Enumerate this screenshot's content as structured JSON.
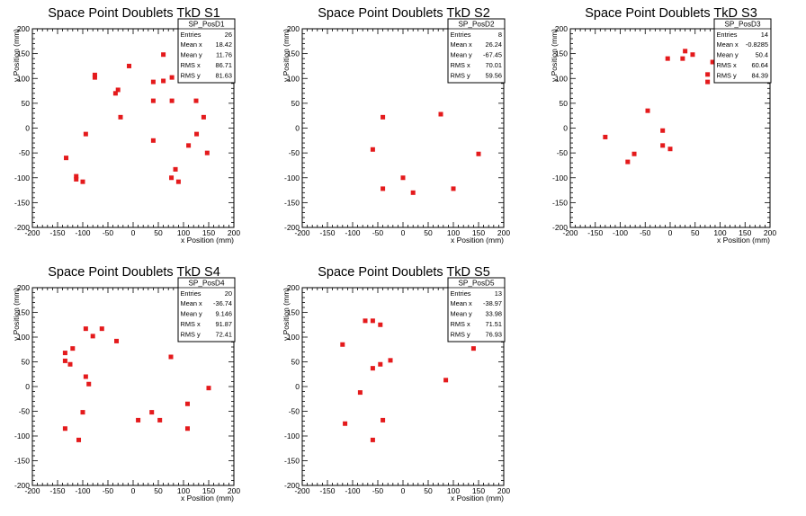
{
  "page": {
    "background": "#ffffff"
  },
  "chart_data": [
    {
      "type": "scatter",
      "title": "Space Point Doublets TkD S1",
      "xlabel": "x Position (mm)",
      "ylabel": "y Position (mm)",
      "xlim": [
        -200,
        200
      ],
      "ylim": [
        -200,
        200
      ],
      "xticks": [
        "-200",
        "-150",
        "-100",
        "-50",
        "0",
        "50",
        "100",
        "150",
        "200"
      ],
      "yticks": [
        "-200",
        "-150",
        "-100",
        "-50",
        "0",
        "50",
        "100",
        "150",
        "200"
      ],
      "grid": false,
      "marker_color": "#e41a1c",
      "stats": {
        "name": "SP_PosD1",
        "rows": [
          [
            "Entries",
            "26"
          ],
          [
            "Mean x",
            "18.42"
          ],
          [
            "Mean y",
            "11.76"
          ],
          [
            "RMS x",
            "86.71"
          ],
          [
            "RMS y",
            "81.63"
          ]
        ]
      },
      "points": [
        [
          -133,
          -60
        ],
        [
          -113,
          -97
        ],
        [
          -113,
          -103
        ],
        [
          -100,
          -108
        ],
        [
          -94,
          -12
        ],
        [
          -76,
          107
        ],
        [
          -76,
          102
        ],
        [
          -35,
          70
        ],
        [
          -30,
          77
        ],
        [
          -25,
          22
        ],
        [
          -8,
          125
        ],
        [
          40,
          93
        ],
        [
          40,
          55
        ],
        [
          40,
          -25
        ],
        [
          60,
          148
        ],
        [
          60,
          95
        ],
        [
          77,
          102
        ],
        [
          77,
          55
        ],
        [
          76,
          -100
        ],
        [
          84,
          -83
        ],
        [
          90,
          -108
        ],
        [
          110,
          -35
        ],
        [
          125,
          55
        ],
        [
          126,
          -12
        ],
        [
          140,
          22
        ],
        [
          147,
          -50
        ]
      ]
    },
    {
      "type": "scatter",
      "title": "Space Point Doublets TkD S2",
      "xlabel": "x Position (mm)",
      "ylabel": "y Position (mm)",
      "xlim": [
        -200,
        200
      ],
      "ylim": [
        -200,
        200
      ],
      "xticks": [
        "-200",
        "-150",
        "-100",
        "-50",
        "0",
        "50",
        "100",
        "150",
        "200"
      ],
      "yticks": [
        "-200",
        "-150",
        "-100",
        "-50",
        "0",
        "50",
        "100",
        "150",
        "200"
      ],
      "grid": false,
      "marker_color": "#e41a1c",
      "stats": {
        "name": "SP_PosD2",
        "rows": [
          [
            "Entries",
            "8"
          ],
          [
            "Mean x",
            "26.24"
          ],
          [
            "Mean y",
            "-67.45"
          ],
          [
            "RMS x",
            "70.01"
          ],
          [
            "RMS y",
            "59.56"
          ]
        ]
      },
      "points": [
        [
          -40,
          22
        ],
        [
          -60,
          -43
        ],
        [
          -40,
          -122
        ],
        [
          0,
          -100
        ],
        [
          20,
          -130
        ],
        [
          75,
          28
        ],
        [
          100,
          -122
        ],
        [
          150,
          -52
        ]
      ]
    },
    {
      "type": "scatter",
      "title": "Space Point Doublets TkD S3",
      "xlabel": "x Position (mm)",
      "ylabel": "y Position (mm)",
      "xlim": [
        -200,
        200
      ],
      "ylim": [
        -200,
        200
      ],
      "xticks": [
        "-200",
        "-150",
        "-100",
        "-50",
        "0",
        "50",
        "100",
        "150",
        "200"
      ],
      "yticks": [
        "-200",
        "-150",
        "-100",
        "-50",
        "0",
        "50",
        "100",
        "150",
        "200"
      ],
      "grid": false,
      "marker_color": "#e41a1c",
      "stats": {
        "name": "SP_PosD3",
        "rows": [
          [
            "Entries",
            "14"
          ],
          [
            "Mean x",
            "-0.8285"
          ],
          [
            "Mean y",
            "50.4"
          ],
          [
            "RMS x",
            "60.64"
          ],
          [
            "RMS y",
            "84.39"
          ]
        ]
      },
      "points": [
        [
          -130,
          -18
        ],
        [
          -85,
          -68
        ],
        [
          -72,
          -52
        ],
        [
          -45,
          35
        ],
        [
          -15,
          -5
        ],
        [
          -15,
          -35
        ],
        [
          -5,
          140
        ],
        [
          0,
          -42
        ],
        [
          25,
          140
        ],
        [
          30,
          155
        ],
        [
          45,
          148
        ],
        [
          75,
          108
        ],
        [
          75,
          93
        ],
        [
          85,
          133
        ]
      ]
    },
    {
      "type": "scatter",
      "title": "Space Point Doublets TkD S4",
      "xlabel": "x Position (mm)",
      "ylabel": "y Position (mm)",
      "xlim": [
        -200,
        200
      ],
      "ylim": [
        -200,
        200
      ],
      "xticks": [
        "-200",
        "-150",
        "-100",
        "-50",
        "0",
        "50",
        "100",
        "150",
        "200"
      ],
      "yticks": [
        "-200",
        "-150",
        "-100",
        "-50",
        "0",
        "50",
        "100",
        "150",
        "200"
      ],
      "grid": false,
      "marker_color": "#e41a1c",
      "stats": {
        "name": "SP_PosD4",
        "rows": [
          [
            "Entries",
            "20"
          ],
          [
            "Mean x",
            "-36.74"
          ],
          [
            "Mean y",
            "9.146"
          ],
          [
            "RMS x",
            "91.87"
          ],
          [
            "RMS y",
            "72.41"
          ]
        ]
      },
      "points": [
        [
          -135,
          -85
        ],
        [
          -135,
          68
        ],
        [
          -135,
          52
        ],
        [
          -125,
          45
        ],
        [
          -120,
          77
        ],
        [
          -108,
          -108
        ],
        [
          -100,
          -52
        ],
        [
          -94,
          117
        ],
        [
          -94,
          20
        ],
        [
          -88,
          5
        ],
        [
          -80,
          102
        ],
        [
          -62,
          117
        ],
        [
          -33,
          92
        ],
        [
          10,
          -68
        ],
        [
          37,
          -52
        ],
        [
          53,
          -68
        ],
        [
          75,
          60
        ],
        [
          108,
          -35
        ],
        [
          108,
          -85
        ],
        [
          150,
          -3
        ]
      ]
    },
    {
      "type": "scatter",
      "title": "Space Point Doublets TkD S5",
      "xlabel": "x Position (mm)",
      "ylabel": "y Position (mm)",
      "xlim": [
        -200,
        200
      ],
      "ylim": [
        -200,
        200
      ],
      "xticks": [
        "-200",
        "-150",
        "-100",
        "-50",
        "0",
        "50",
        "100",
        "150",
        "200"
      ],
      "yticks": [
        "-200",
        "-150",
        "-100",
        "-50",
        "0",
        "50",
        "100",
        "150",
        "200"
      ],
      "grid": false,
      "marker_color": "#e41a1c",
      "stats": {
        "name": "SP_PosD5",
        "rows": [
          [
            "Entries",
            "13"
          ],
          [
            "Mean x",
            "-38.97"
          ],
          [
            "Mean y",
            "33.98"
          ],
          [
            "RMS x",
            "71.51"
          ],
          [
            "RMS y",
            "76.93"
          ]
        ]
      },
      "points": [
        [
          -120,
          85
        ],
        [
          -115,
          -75
        ],
        [
          -85,
          -12
        ],
        [
          -75,
          133
        ],
        [
          -60,
          133
        ],
        [
          -60,
          37
        ],
        [
          -60,
          -108
        ],
        [
          -45,
          125
        ],
        [
          -45,
          45
        ],
        [
          -40,
          -68
        ],
        [
          -25,
          53
        ],
        [
          85,
          13
        ],
        [
          140,
          77
        ]
      ]
    }
  ]
}
